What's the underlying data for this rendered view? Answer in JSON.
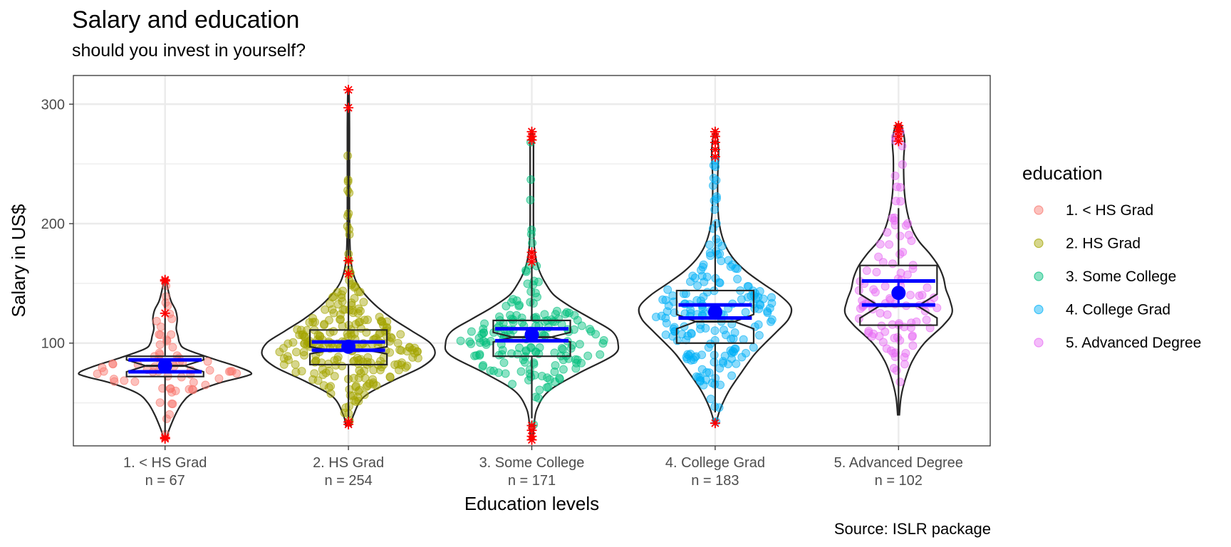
{
  "chart_data": {
    "type": "violin-box",
    "title": "Salary and education",
    "subtitle": "should you invest in yourself?",
    "caption": "Source: ISLR package",
    "xlabel": "Education levels",
    "ylabel": "Salary in US$",
    "ylim": [
      14,
      324
    ],
    "yticks": [
      100,
      200,
      300
    ],
    "grid": true,
    "legend": {
      "title": "education",
      "position": "right",
      "entries": [
        "1. < HS Grad",
        "2. HS Grad",
        "3. Some College",
        "4. College Grad",
        "5. Advanced Degree"
      ]
    },
    "categories": [
      "1. < HS Grad",
      "2. HS Grad",
      "3. Some College",
      "4. College Grad",
      "5. Advanced Degree"
    ],
    "n_labels": [
      "n =  67",
      "n =  254",
      "n =  171",
      "n =  183",
      "n =  102"
    ],
    "colors": [
      "#F8766D",
      "#A3A500",
      "#00BF7D",
      "#00B0F6",
      "#E76BF3"
    ],
    "outlier_color": "#FF0000",
    "stat_color": "#0000FF",
    "groups": [
      {
        "n": 67,
        "box": {
          "q1": 72,
          "median": 81,
          "q3": 89,
          "notch_low": 76,
          "notch_high": 86,
          "whisker_low": 21,
          "whisker_high": 153
        },
        "mean": 81,
        "mean_ci": [
          76,
          86
        ],
        "outliers": [
          20,
          21,
          125,
          152,
          153
        ],
        "violin": [
          [
            21,
            0.02
          ],
          [
            28,
            0.05
          ],
          [
            40,
            0.12
          ],
          [
            50,
            0.2
          ],
          [
            58,
            0.32
          ],
          [
            66,
            0.6
          ],
          [
            72,
            0.92
          ],
          [
            75,
            1.0
          ],
          [
            80,
            0.85
          ],
          [
            87,
            0.55
          ],
          [
            95,
            0.24
          ],
          [
            100,
            0.17
          ],
          [
            106,
            0.15
          ],
          [
            112,
            0.13
          ],
          [
            118,
            0.14
          ],
          [
            122,
            0.14
          ],
          [
            128,
            0.12
          ],
          [
            135,
            0.07
          ],
          [
            143,
            0.04
          ],
          [
            153,
            0.01
          ]
        ]
      },
      {
        "n": 254,
        "box": {
          "q1": 82,
          "median": 94,
          "q3": 111,
          "notch_low": 91,
          "notch_high": 97,
          "whisker_low": 35,
          "whisker_high": 311
        },
        "mean": 97,
        "mean_ci": [
          94,
          101
        ],
        "outliers": [
          32,
          34,
          158,
          169,
          297,
          312
        ],
        "violin": [
          [
            31,
            0.03
          ],
          [
            40,
            0.06
          ],
          [
            55,
            0.18
          ],
          [
            68,
            0.5
          ],
          [
            80,
            0.85
          ],
          [
            90,
            1.0
          ],
          [
            100,
            0.95
          ],
          [
            110,
            0.74
          ],
          [
            120,
            0.52
          ],
          [
            130,
            0.34
          ],
          [
            140,
            0.2
          ],
          [
            150,
            0.1
          ],
          [
            160,
            0.05
          ],
          [
            172,
            0.025
          ],
          [
            190,
            0.015
          ],
          [
            215,
            0.012
          ],
          [
            250,
            0.012
          ],
          [
            280,
            0.012
          ],
          [
            300,
            0.01
          ],
          [
            312,
            0.005
          ]
        ]
      },
      {
        "n": 171,
        "box": {
          "q1": 89,
          "median": 105,
          "q3": 119,
          "notch_low": 101,
          "notch_high": 109,
          "whisker_low": 37,
          "whisker_high": 165
        },
        "mean": 107,
        "mean_ci": [
          102,
          112
        ],
        "outliers": [
          19,
          22,
          27,
          31,
          168,
          172,
          176,
          270,
          273,
          277
        ],
        "violin": [
          [
            19,
            0.015
          ],
          [
            30,
            0.025
          ],
          [
            45,
            0.06
          ],
          [
            60,
            0.2
          ],
          [
            75,
            0.55
          ],
          [
            90,
            0.95
          ],
          [
            100,
            1.0
          ],
          [
            110,
            0.93
          ],
          [
            120,
            0.7
          ],
          [
            130,
            0.46
          ],
          [
            140,
            0.26
          ],
          [
            150,
            0.16
          ],
          [
            160,
            0.09
          ],
          [
            170,
            0.05
          ],
          [
            180,
            0.03
          ],
          [
            200,
            0.02
          ],
          [
            230,
            0.02
          ],
          [
            260,
            0.02
          ],
          [
            272,
            0.02
          ],
          [
            278,
            0.005
          ]
        ]
      },
      {
        "n": 183,
        "box": {
          "q1": 100,
          "median": 118,
          "q3": 144,
          "notch_low": 112,
          "notch_high": 124,
          "whisker_low": 42,
          "whisker_high": 202
        },
        "mean": 126,
        "mean_ci": [
          121,
          132
        ],
        "outliers": [
          33,
          256,
          262,
          268,
          273,
          277
        ],
        "violin": [
          [
            33,
            0.01
          ],
          [
            45,
            0.06
          ],
          [
            60,
            0.16
          ],
          [
            75,
            0.3
          ],
          [
            90,
            0.45
          ],
          [
            100,
            0.58
          ],
          [
            110,
            0.72
          ],
          [
            120,
            0.85
          ],
          [
            130,
            0.88
          ],
          [
            140,
            0.75
          ],
          [
            150,
            0.55
          ],
          [
            160,
            0.36
          ],
          [
            170,
            0.22
          ],
          [
            180,
            0.13
          ],
          [
            192,
            0.07
          ],
          [
            205,
            0.04
          ],
          [
            220,
            0.03
          ],
          [
            240,
            0.03
          ],
          [
            262,
            0.04
          ],
          [
            277,
            0.01
          ]
        ]
      },
      {
        "n": 102,
        "box": {
          "q1": 115,
          "median": 131,
          "q3": 165,
          "notch_low": 121,
          "notch_high": 141,
          "whisker_low": 40,
          "whisker_high": 213
        },
        "mean": 142,
        "mean_ci": [
          132,
          152
        ],
        "outliers": [
          269,
          273,
          277,
          280,
          282
        ],
        "violin": [
          [
            40,
            0.01
          ],
          [
            55,
            0.03
          ],
          [
            70,
            0.08
          ],
          [
            85,
            0.16
          ],
          [
            100,
            0.3
          ],
          [
            115,
            0.52
          ],
          [
            125,
            0.62
          ],
          [
            135,
            0.6
          ],
          [
            145,
            0.55
          ],
          [
            155,
            0.52
          ],
          [
            165,
            0.46
          ],
          [
            175,
            0.36
          ],
          [
            185,
            0.24
          ],
          [
            195,
            0.16
          ],
          [
            210,
            0.1
          ],
          [
            225,
            0.07
          ],
          [
            240,
            0.06
          ],
          [
            255,
            0.06
          ],
          [
            270,
            0.07
          ],
          [
            282,
            0.03
          ]
        ]
      }
    ]
  }
}
